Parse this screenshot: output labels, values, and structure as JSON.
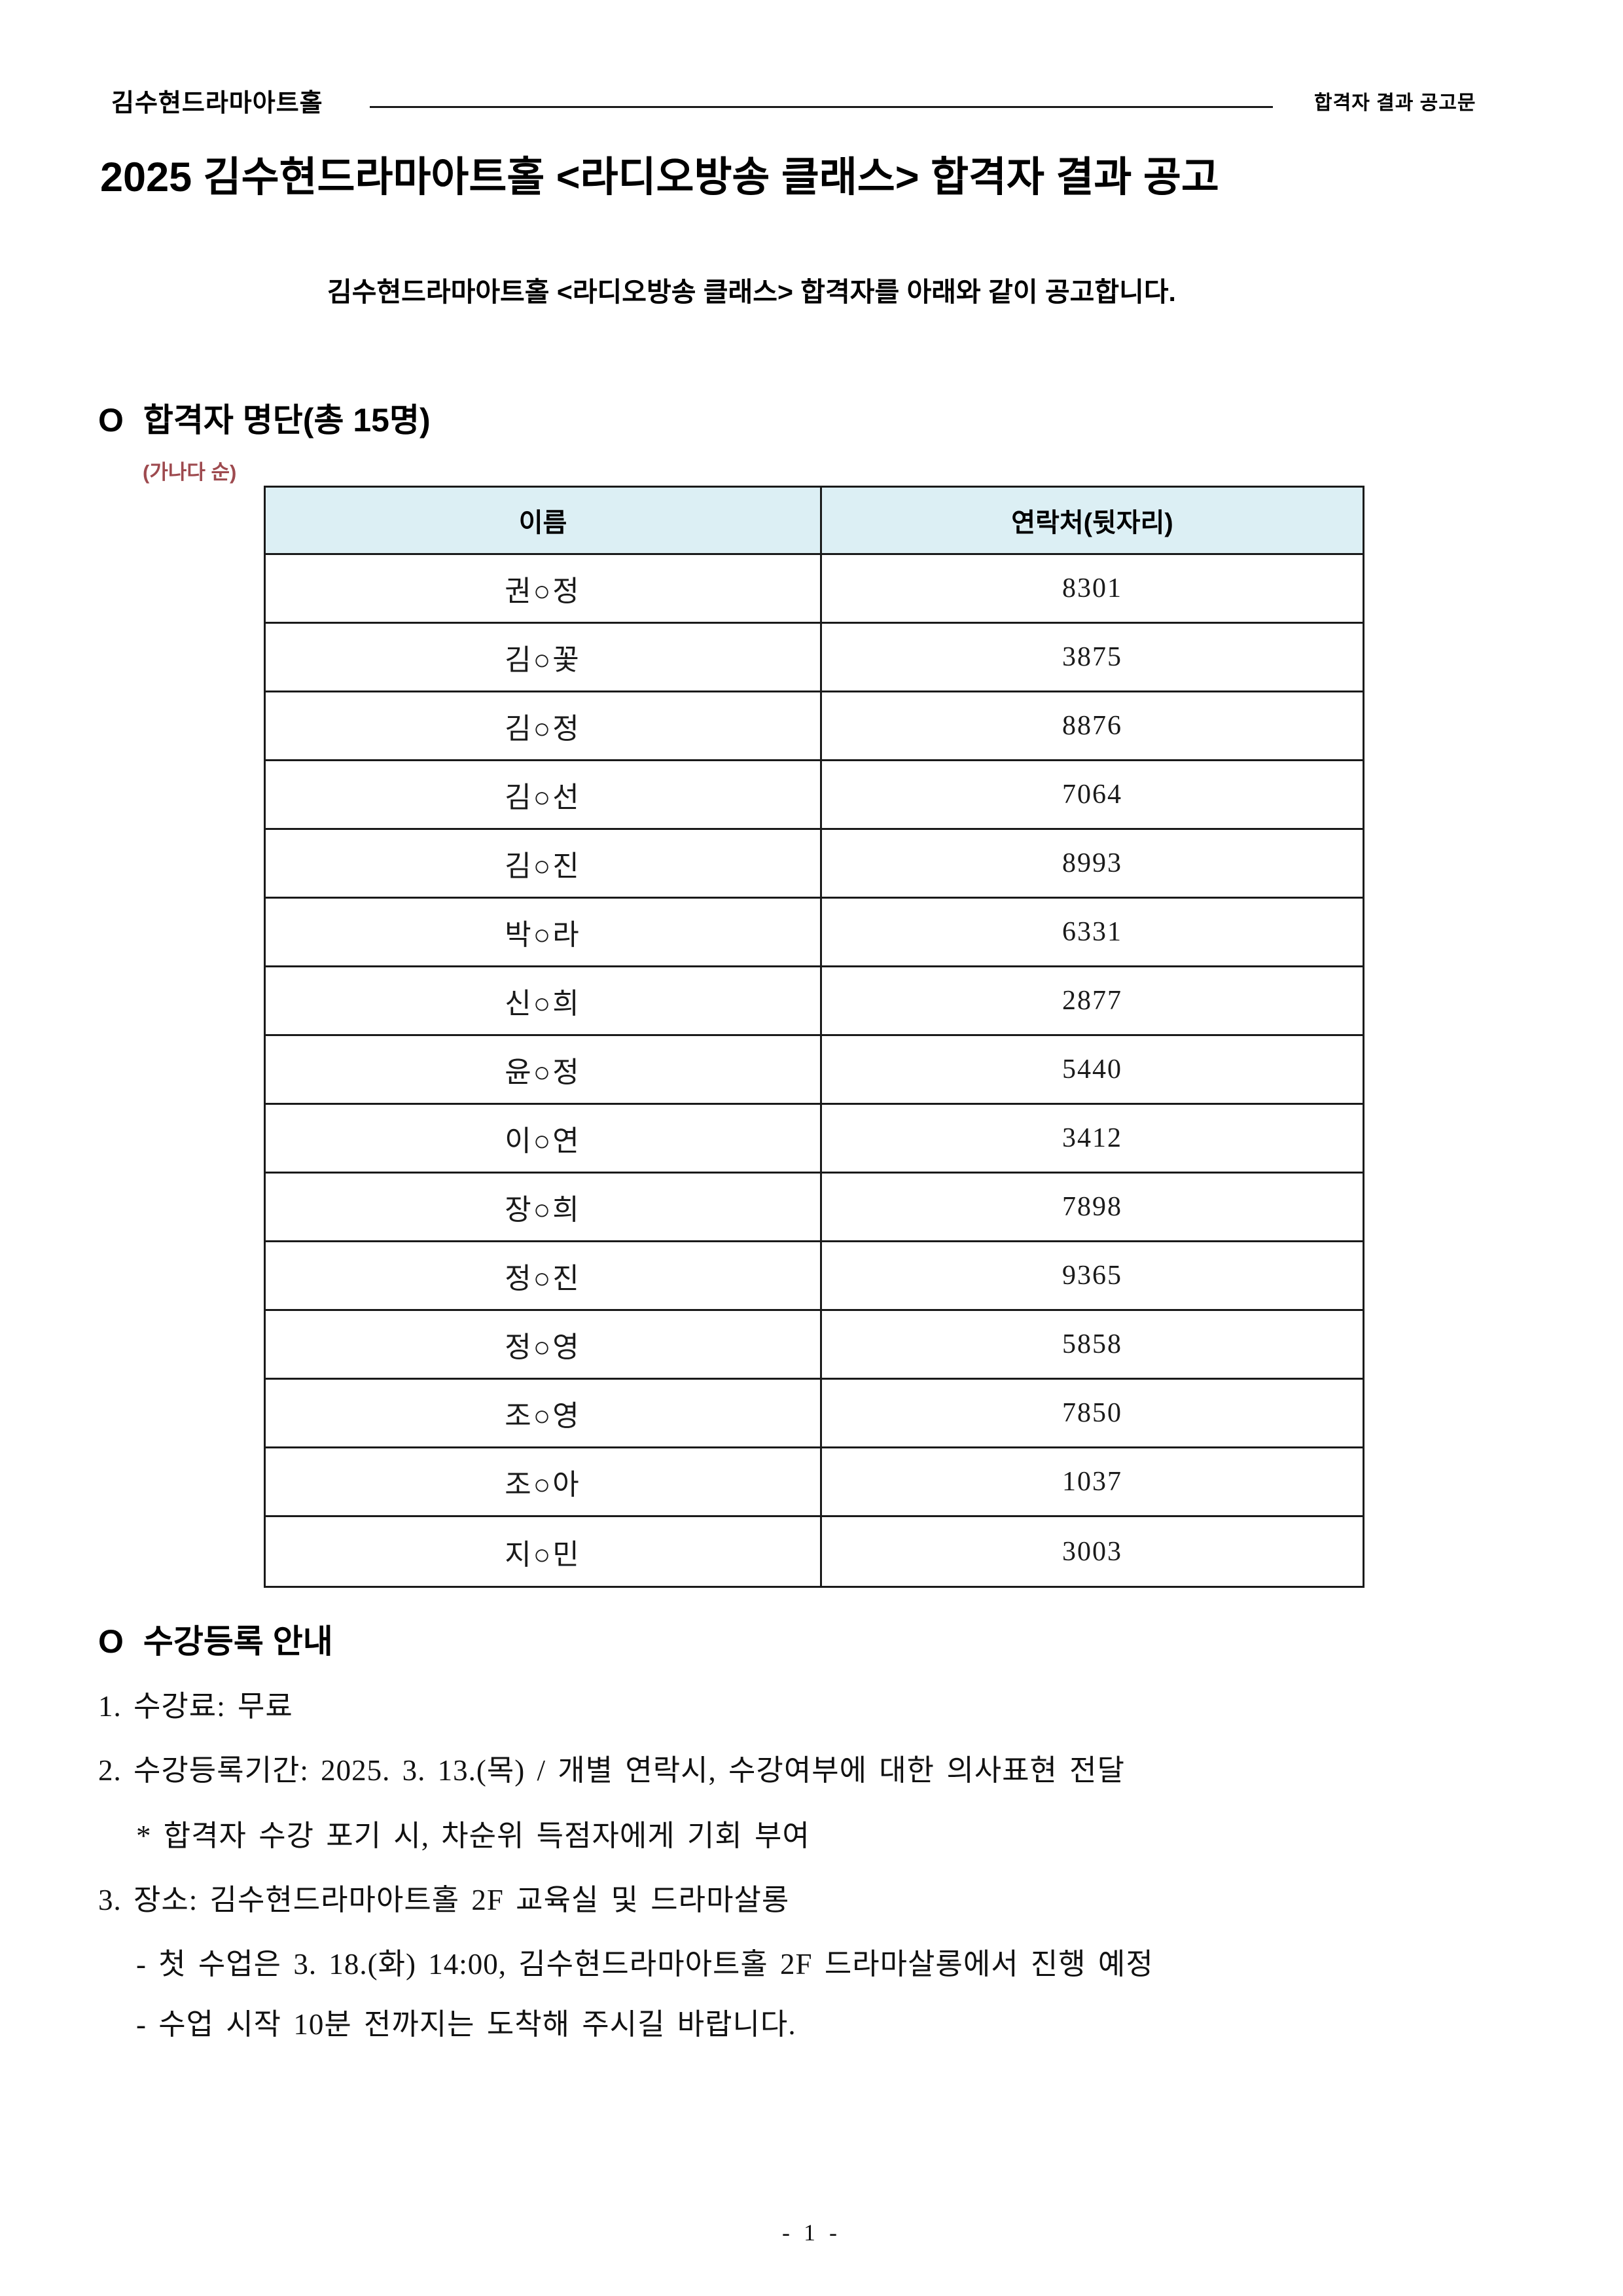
{
  "page": {
    "header": {
      "brand": "김수현드라마아트홀",
      "doc_type": "합격자 결과 공고문"
    },
    "title": "2025 김수현드라마아트홀 <라디오방송 클래스> 합격자 결과 공고",
    "subtitle": "김수현드라마아트홀 <라디오방송 클래스> 합격자를 아래와 같이 공고합니다.",
    "pass_list_section": {
      "bullet": "O",
      "heading": "합격자 명단(총 15명)",
      "sort_note": "(가나다 순)",
      "table": {
        "columns": [
          "이름",
          "연락처(뒷자리)"
        ],
        "rows": [
          [
            "권○정",
            "8301"
          ],
          [
            "김○꽃",
            "3875"
          ],
          [
            "김○정",
            "8876"
          ],
          [
            "김○선",
            "7064"
          ],
          [
            "김○진",
            "8993"
          ],
          [
            "박○라",
            "6331"
          ],
          [
            "신○희",
            "2877"
          ],
          [
            "윤○정",
            "5440"
          ],
          [
            "이○연",
            "3412"
          ],
          [
            "장○희",
            "7898"
          ],
          [
            "정○진",
            "9365"
          ],
          [
            "정○영",
            "5858"
          ],
          [
            "조○영",
            "7850"
          ],
          [
            "조○아",
            "1037"
          ],
          [
            "지○민",
            "3003"
          ]
        ]
      }
    },
    "registration_section": {
      "bullet": "O",
      "heading": "수강등록 안내",
      "items": [
        {
          "text": "1. 수강료: 무료"
        },
        {
          "text": "2. 수강등록기간: 2025. 3. 13.(목) / 개별 연락시, 수강여부에 대한 의사표현 전달"
        },
        {
          "text": "* 합격자 수강 포기 시, 차순위 득점자에게 기회 부여"
        },
        {
          "text": "3. 장소: 김수현드라마아트홀 2F 교육실 및 드라마살롱"
        },
        {
          "text": "- 첫 수업은 3. 18.(화) 14:00, 김수현드라마아트홀 2F 드라마살롱에서 진행 예정"
        },
        {
          "text": "- 수업 시작 10분 전까지는 도착해 주시길 바랍니다."
        }
      ]
    },
    "footer": {
      "page_number": "- 1 -"
    },
    "colors": {
      "accent_red": "#9E4A4F",
      "table_header_bg": "#DCEFF4",
      "border": "#1A1A1A"
    }
  }
}
